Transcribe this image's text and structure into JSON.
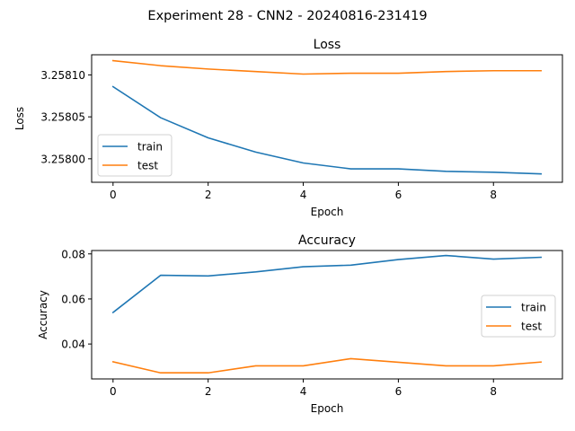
{
  "figure": {
    "suptitle": "Experiment 28 - CNN2 - 20240816-231419"
  },
  "chart_data": [
    {
      "type": "line",
      "title": "Loss",
      "xlabel": "Epoch",
      "ylabel": "Loss",
      "x": [
        0,
        1,
        2,
        3,
        4,
        5,
        6,
        7,
        8,
        9
      ],
      "xlim": [
        -0.45,
        9.45
      ],
      "ylim": [
        3.257972,
        3.258124
      ],
      "xticks": [
        0,
        2,
        4,
        6,
        8
      ],
      "xtick_labels": [
        "0",
        "2",
        "4",
        "6",
        "8"
      ],
      "yticks": [
        3.258,
        3.25805,
        3.2581
      ],
      "ytick_labels": [
        "3.25800",
        "3.25805",
        "3.25810"
      ],
      "legend_position": "center-left",
      "grid": false,
      "series": [
        {
          "name": "train",
          "color": "#1f77b4",
          "values": [
            3.258086,
            3.258049,
            3.258025,
            3.258008,
            3.257995,
            3.257988,
            3.257988,
            3.257985,
            3.257984,
            3.257982
          ]
        },
        {
          "name": "test",
          "color": "#ff7f0e",
          "values": [
            3.258117,
            3.258111,
            3.258107,
            3.258104,
            3.258101,
            3.258102,
            3.258102,
            3.258104,
            3.258105,
            3.258105
          ]
        }
      ]
    },
    {
      "type": "line",
      "title": "Accuracy",
      "xlabel": "Epoch",
      "ylabel": "Accuracy",
      "x": [
        0,
        1,
        2,
        3,
        4,
        5,
        6,
        7,
        8,
        9
      ],
      "xlim": [
        -0.45,
        9.45
      ],
      "ylim": [
        0.0245,
        0.0815
      ],
      "xticks": [
        0,
        2,
        4,
        6,
        8
      ],
      "xtick_labels": [
        "0",
        "2",
        "4",
        "6",
        "8"
      ],
      "yticks": [
        0.04,
        0.06,
        0.08
      ],
      "ytick_labels": [
        "0.04",
        "0.06",
        "0.08"
      ],
      "legend_position": "center-right",
      "grid": false,
      "series": [
        {
          "name": "train",
          "color": "#1f77b4",
          "values": [
            0.054,
            0.0705,
            0.0702,
            0.072,
            0.0743,
            0.075,
            0.0775,
            0.0793,
            0.0777,
            0.0785
          ]
        },
        {
          "name": "test",
          "color": "#ff7f0e",
          "values": [
            0.0321,
            0.0272,
            0.0272,
            0.0303,
            0.0303,
            0.0335,
            0.0319,
            0.0303,
            0.0303,
            0.032
          ]
        }
      ]
    }
  ]
}
